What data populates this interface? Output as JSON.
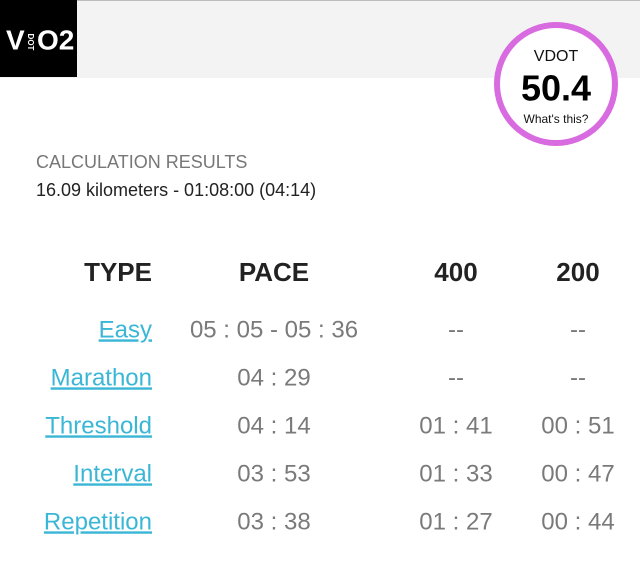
{
  "header": {
    "logo": {
      "v": "V",
      "dot": "DOT",
      "o2": "O2"
    }
  },
  "vdot": {
    "label": "VDOT",
    "value": 50.4,
    "link": "What's this?"
  },
  "results": {
    "title": "CALCULATION RESULTS",
    "summary": "16.09 kilometers - 01:08:00 (04:14)"
  },
  "table": {
    "columns": [
      "TYPE",
      "PACE",
      "400",
      "200"
    ],
    "rows": [
      [
        "Easy",
        "05 : 05 - 05 : 36",
        "--",
        "--"
      ],
      [
        "Marathon",
        "04 : 29",
        "--",
        "--"
      ],
      [
        "Threshold",
        "04 : 14",
        "01 : 41",
        "00 : 51"
      ],
      [
        "Interval",
        "03 : 53",
        "01 : 33",
        "00 : 47"
      ],
      [
        "Repetition",
        "03 : 38",
        "01 : 27",
        "00 : 44"
      ]
    ]
  }
}
